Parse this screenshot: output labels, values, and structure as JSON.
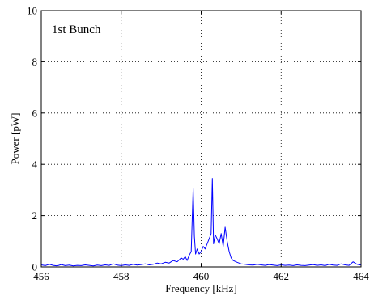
{
  "chart_data": {
    "type": "line",
    "title": "",
    "xlabel": "Frequency [kHz]",
    "ylabel": "Power [pW]",
    "xlim": [
      456,
      464
    ],
    "ylim": [
      0,
      10
    ],
    "xticks": [
      456,
      458,
      460,
      462,
      464
    ],
    "yticks": [
      0,
      2,
      4,
      6,
      8,
      10
    ],
    "grid": true,
    "grid_style": "dotted",
    "annotation": "1st Bunch",
    "series": [
      {
        "color": "#0000ff",
        "x": [
          456.0,
          456.1,
          456.2,
          456.3,
          456.4,
          456.5,
          456.6,
          456.7,
          456.8,
          456.9,
          457.0,
          457.1,
          457.2,
          457.3,
          457.4,
          457.5,
          457.6,
          457.7,
          457.8,
          457.9,
          458.0,
          458.1,
          458.2,
          458.3,
          458.4,
          458.5,
          458.6,
          458.7,
          458.8,
          458.9,
          459.0,
          459.1,
          459.2,
          459.3,
          459.4,
          459.5,
          459.55,
          459.6,
          459.65,
          459.7,
          459.75,
          459.8,
          459.83,
          459.86,
          459.9,
          459.95,
          460.0,
          460.05,
          460.1,
          460.15,
          460.2,
          460.25,
          460.28,
          460.31,
          460.35,
          460.4,
          460.45,
          460.5,
          460.55,
          460.6,
          460.65,
          460.7,
          460.75,
          460.8,
          460.9,
          461.0,
          461.1,
          461.2,
          461.3,
          461.4,
          461.5,
          461.6,
          461.7,
          461.8,
          461.9,
          462.0,
          462.1,
          462.2,
          462.3,
          462.4,
          462.5,
          462.6,
          462.7,
          462.8,
          462.9,
          463.0,
          463.1,
          463.2,
          463.3,
          463.4,
          463.5,
          463.6,
          463.7,
          463.8,
          463.9,
          464.0
        ],
        "y": [
          0.08,
          0.05,
          0.1,
          0.06,
          0.04,
          0.09,
          0.05,
          0.07,
          0.04,
          0.06,
          0.05,
          0.08,
          0.06,
          0.04,
          0.07,
          0.05,
          0.08,
          0.06,
          0.12,
          0.07,
          0.05,
          0.08,
          0.06,
          0.1,
          0.07,
          0.09,
          0.12,
          0.08,
          0.1,
          0.15,
          0.12,
          0.18,
          0.15,
          0.25,
          0.2,
          0.35,
          0.3,
          0.4,
          0.25,
          0.45,
          0.6,
          3.05,
          1.2,
          0.5,
          0.7,
          0.5,
          0.6,
          0.8,
          0.7,
          0.9,
          1.1,
          1.3,
          3.45,
          0.9,
          1.25,
          1.1,
          0.9,
          1.3,
          0.8,
          1.55,
          1.0,
          0.6,
          0.35,
          0.25,
          0.18,
          0.12,
          0.1,
          0.08,
          0.07,
          0.1,
          0.08,
          0.06,
          0.09,
          0.07,
          0.05,
          0.08,
          0.06,
          0.07,
          0.05,
          0.08,
          0.06,
          0.05,
          0.07,
          0.09,
          0.06,
          0.08,
          0.05,
          0.1,
          0.07,
          0.06,
          0.12,
          0.08,
          0.06,
          0.2,
          0.1,
          0.07
        ]
      }
    ]
  }
}
